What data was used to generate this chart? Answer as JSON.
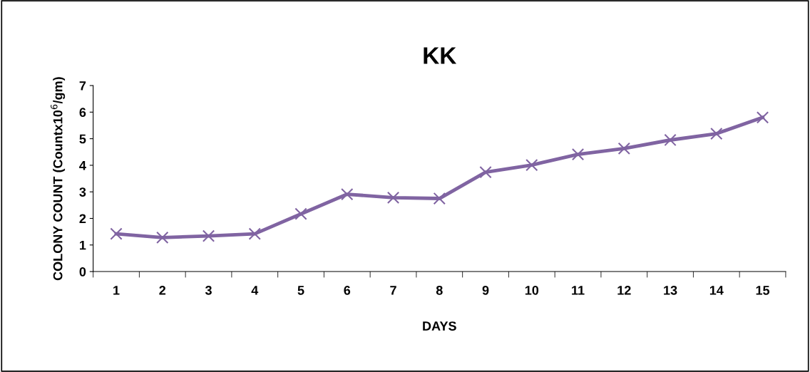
{
  "chart_data": {
    "type": "line",
    "title": "KK",
    "xlabel": "DAYS",
    "ylabel": "COLONY COUNT (Countx10$^{6}$/gm)",
    "categories": [
      "1",
      "2",
      "3",
      "4",
      "5",
      "6",
      "7",
      "8",
      "9",
      "10",
      "11",
      "12",
      "13",
      "14",
      "15"
    ],
    "series": [
      {
        "color": "#8064a2",
        "values": [
          1.42,
          1.28,
          1.34,
          1.42,
          2.17,
          2.91,
          2.78,
          2.75,
          3.74,
          4.01,
          4.41,
          4.63,
          4.95,
          5.19,
          5.8
        ]
      }
    ],
    "ylim": [
      0,
      7
    ],
    "yticks": [
      0,
      1,
      2,
      3,
      4,
      5,
      6,
      7
    ],
    "grid": false,
    "legend": false,
    "marker": "cross",
    "line_style": "solid"
  }
}
